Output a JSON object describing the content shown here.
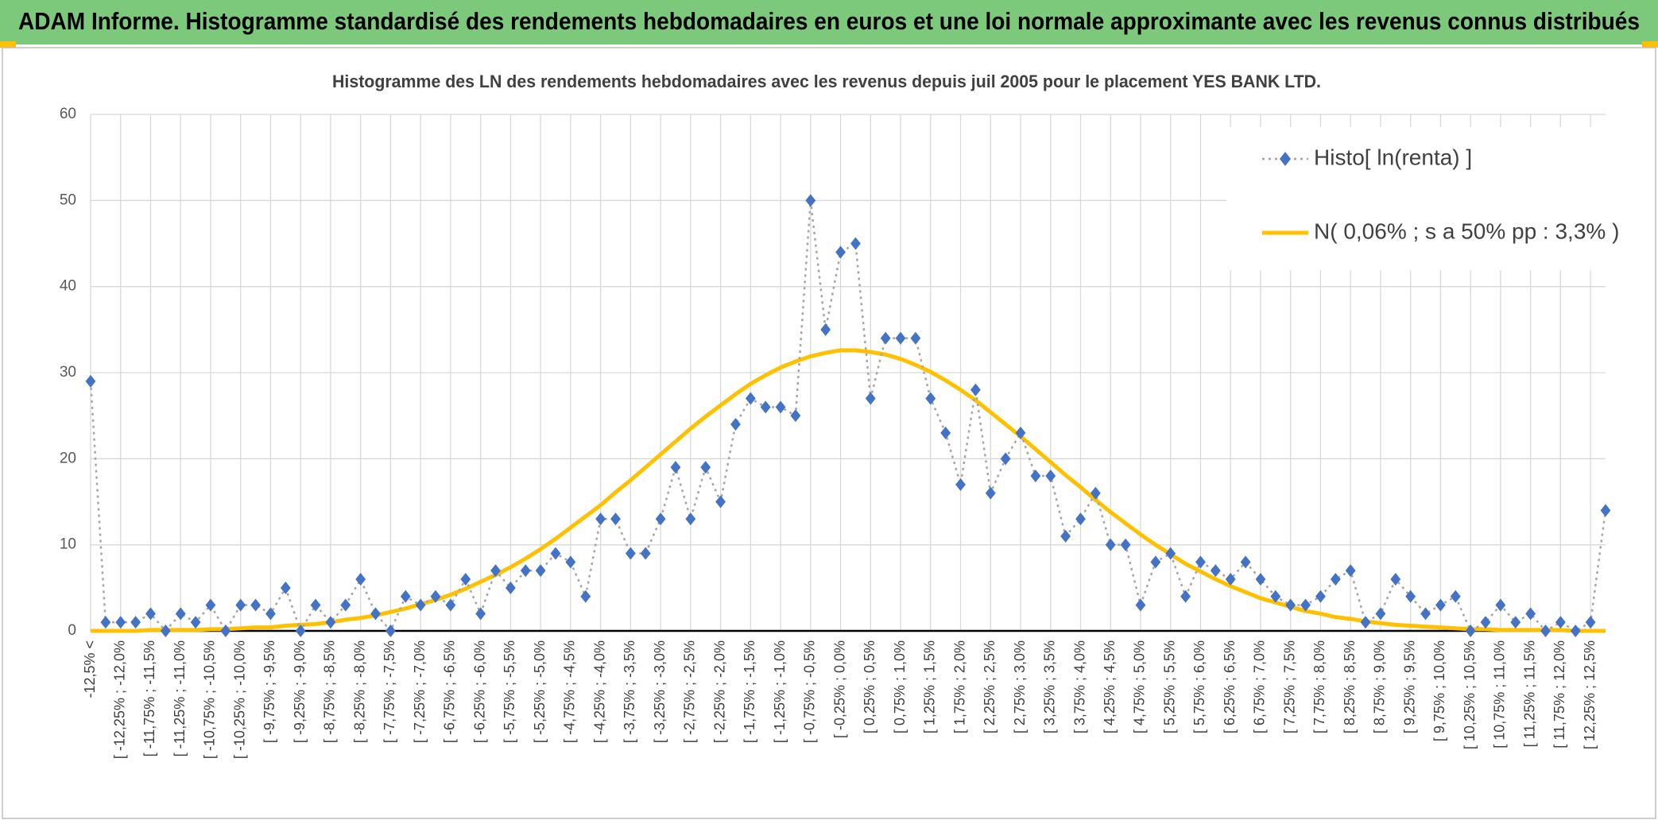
{
  "page_title": "ADAM Informe. Histogramme standardisé des rendements hebdomadaires en euros et une loi normale approximante avec les revenus connus distribués",
  "chart_data": {
    "type": "line",
    "title": "Histogramme des LN des rendements hebdomadaires avec les revenus depuis juil 2005 pour le placement YES BANK LTD.",
    "categories": [
      "-12,5% <",
      null,
      "[ -12,25% ; -12,0%",
      null,
      "[ -11,75% ; -11,5%",
      null,
      "[ -11,25% ; -11,0%",
      null,
      "[ -10,75% ; -10,5%",
      null,
      "[ -10,25% ; -10,0%",
      null,
      "[ -9,75% ; -9,5%",
      null,
      "[ -9,25% ; -9,0%",
      null,
      "[ -8,75% ; -8,5%",
      null,
      "[ -8,25% ; -8,0%",
      null,
      "[ -7,75% ; -7,5%",
      null,
      "[ -7,25% ; -7,0%",
      null,
      "[ -6,75% ; -6,5%",
      null,
      "[ -6,25% ; -6,0%",
      null,
      "[ -5,75% ; -5,5%",
      null,
      "[ -5,25% ; -5,0%",
      null,
      "[ -4,75% ; -4,5%",
      null,
      "[ -4,25% ; -4,0%",
      null,
      "[ -3,75% ; -3,5%",
      null,
      "[ -3,25% ; -3,0%",
      null,
      "[ -2,75% ; -2,5%",
      null,
      "[ -2,25% ; -2,0%",
      null,
      "[ -1,75% ; -1,5%",
      null,
      "[ -1,25% ; -1,0%",
      null,
      "[ -0,75% ; -0,5%",
      null,
      "[ -0,25% ; 0,0%",
      null,
      "[ 0,25% ; 0,5%",
      null,
      "[ 0,75% ; 1,0%",
      null,
      "[ 1,25% ; 1,5%",
      null,
      "[ 1,75% ; 2,0%",
      null,
      "[ 2,25% ; 2,5%",
      null,
      "[ 2,75% ; 3,0%",
      null,
      "[ 3,25% ; 3,5%",
      null,
      "[ 3,75% ; 4,0%",
      null,
      "[ 4,25% ; 4,5%",
      null,
      "[ 4,75% ; 5,0%",
      null,
      "[ 5,25% ; 5,5%",
      null,
      "[ 5,75% ; 6,0%",
      null,
      "[ 6,25% ; 6,5%",
      null,
      "[ 6,75% ; 7,0%",
      null,
      "[ 7,25% ; 7,5%",
      null,
      "[ 7,75% ; 8,0%",
      null,
      "[ 8,25% ; 8,5%",
      null,
      "[ 8,75% ; 9,0%",
      null,
      "[ 9,25% ; 9,5%",
      null,
      "[ 9,75% ; 10,0%",
      null,
      "[ 10,25% ; 10,5%",
      null,
      "[ 10,75% ; 11,0%",
      null,
      "[ 11,25% ; 11,5%",
      null,
      "[ 11,75% ; 12,0%",
      null,
      "[ 12,25% ; 12,5%",
      null
    ],
    "series": [
      {
        "name": "Histo[ ln(renta) ]",
        "color": "#4472c4",
        "line_color": "#a5a5a5",
        "line_style": "dotted",
        "marker": "diamond",
        "values": [
          29,
          1,
          1,
          1,
          2,
          0,
          2,
          1,
          3,
          0,
          3,
          3,
          2,
          5,
          0,
          3,
          1,
          3,
          6,
          2,
          0,
          4,
          3,
          4,
          3,
          6,
          2,
          7,
          5,
          7,
          7,
          9,
          8,
          4,
          13,
          13,
          9,
          9,
          13,
          19,
          13,
          19,
          15,
          24,
          27,
          26,
          26,
          25,
          50,
          35,
          44,
          45,
          27,
          34,
          34,
          34,
          27,
          23,
          17,
          28,
          16,
          20,
          23,
          18,
          18,
          11,
          13,
          16,
          10,
          10,
          3,
          8,
          9,
          4,
          8,
          7,
          6,
          8,
          6,
          4,
          3,
          3,
          4,
          6,
          7,
          1,
          2,
          6,
          4,
          2,
          3,
          4,
          0,
          1,
          3,
          1,
          2,
          0,
          1,
          0,
          1,
          14
        ]
      },
      {
        "name": "N( 0,06% ; s a 50% pp : 3,3% )",
        "color": "#ffc000",
        "line_style": "solid",
        "marker": "none",
        "values": [
          0.0,
          0.0,
          0.0,
          0.0,
          0.1,
          0.1,
          0.1,
          0.1,
          0.2,
          0.2,
          0.3,
          0.4,
          0.4,
          0.6,
          0.7,
          0.8,
          1.0,
          1.3,
          1.5,
          1.8,
          2.2,
          2.6,
          3.1,
          3.6,
          4.2,
          4.9,
          5.7,
          6.5,
          7.4,
          8.4,
          9.5,
          10.7,
          12.0,
          13.3,
          14.6,
          16.1,
          17.5,
          19.0,
          20.5,
          22.0,
          23.5,
          24.9,
          26.2,
          27.5,
          28.7,
          29.7,
          30.6,
          31.3,
          31.9,
          32.3,
          32.6,
          32.6,
          32.4,
          32.1,
          31.6,
          30.9,
          30.1,
          29.1,
          28.0,
          26.8,
          25.4,
          24.0,
          22.6,
          21.1,
          19.6,
          18.1,
          16.7,
          15.2,
          13.8,
          12.5,
          11.2,
          10.0,
          8.9,
          7.8,
          6.9,
          6.0,
          5.2,
          4.5,
          3.8,
          3.3,
          2.8,
          2.3,
          2.0,
          1.6,
          1.4,
          1.1,
          0.9,
          0.7,
          0.6,
          0.5,
          0.4,
          0.3,
          0.2,
          0.2,
          0.1,
          0.1,
          0.1,
          0.1,
          0.1,
          0.0,
          0.0,
          0.0
        ]
      }
    ],
    "ylim": [
      0,
      60
    ],
    "yticks": [
      0,
      10,
      20,
      30,
      40,
      50,
      60
    ],
    "grid": true,
    "legend": "top-right"
  }
}
